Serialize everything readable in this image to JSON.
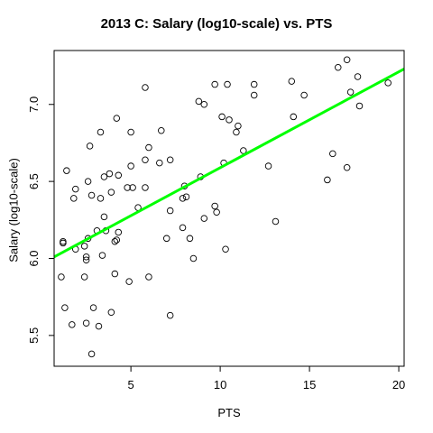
{
  "chart_data": {
    "type": "scatter",
    "title": "2013 C: Salary (log10-scale) vs. PTS",
    "xlabel": "PTS",
    "ylabel": "Salary (log10-scale)",
    "xlim": [
      0.7,
      20.3
    ],
    "ylim": [
      5.3,
      7.35
    ],
    "xticks": [
      "5",
      "10",
      "15",
      "20"
    ],
    "yticks": [
      "5.5",
      "6.0",
      "6.5",
      "7.0"
    ],
    "grid": false,
    "points_style": "open circles",
    "fit_line": {
      "color": "#00ff00",
      "x": [
        0.7,
        20.3
      ],
      "y": [
        6.01,
        7.23
      ]
    },
    "points": [
      [
        1.2,
        6.11
      ],
      [
        1.2,
        6.1
      ],
      [
        1.4,
        6.57
      ],
      [
        1.1,
        5.88
      ],
      [
        1.3,
        5.68
      ],
      [
        1.7,
        5.57
      ],
      [
        1.8,
        6.39
      ],
      [
        1.9,
        6.45
      ],
      [
        1.9,
        6.06
      ],
      [
        2.4,
        5.88
      ],
      [
        2.4,
        6.08
      ],
      [
        2.5,
        6.01
      ],
      [
        2.5,
        5.99
      ],
      [
        2.5,
        5.58
      ],
      [
        2.6,
        6.13
      ],
      [
        2.6,
        6.5
      ],
      [
        2.7,
        6.73
      ],
      [
        2.8,
        6.41
      ],
      [
        2.8,
        5.38
      ],
      [
        2.9,
        5.68
      ],
      [
        3.1,
        6.18
      ],
      [
        3.2,
        5.56
      ],
      [
        3.3,
        6.39
      ],
      [
        3.3,
        6.82
      ],
      [
        3.4,
        6.02
      ],
      [
        3.5,
        6.27
      ],
      [
        3.5,
        6.53
      ],
      [
        3.6,
        6.18
      ],
      [
        3.8,
        6.55
      ],
      [
        3.9,
        6.43
      ],
      [
        3.9,
        5.65
      ],
      [
        4.1,
        6.11
      ],
      [
        4.1,
        5.9
      ],
      [
        4.2,
        6.12
      ],
      [
        4.2,
        6.91
      ],
      [
        4.3,
        6.54
      ],
      [
        4.3,
        6.17
      ],
      [
        4.8,
        6.46
      ],
      [
        4.9,
        5.85
      ],
      [
        5.0,
        6.6
      ],
      [
        5.0,
        6.82
      ],
      [
        5.1,
        6.46
      ],
      [
        5.4,
        6.33
      ],
      [
        5.8,
        6.46
      ],
      [
        5.8,
        6.64
      ],
      [
        5.8,
        7.11
      ],
      [
        6.0,
        6.72
      ],
      [
        6.0,
        5.88
      ],
      [
        6.6,
        6.62
      ],
      [
        6.7,
        6.83
      ],
      [
        7.0,
        6.13
      ],
      [
        7.2,
        6.64
      ],
      [
        7.2,
        6.31
      ],
      [
        7.2,
        5.63
      ],
      [
        7.9,
        6.2
      ],
      [
        7.9,
        6.39
      ],
      [
        8.0,
        6.47
      ],
      [
        8.1,
        6.4
      ],
      [
        8.3,
        6.13
      ],
      [
        8.5,
        6.0
      ],
      [
        8.8,
        7.02
      ],
      [
        8.9,
        6.53
      ],
      [
        9.1,
        6.26
      ],
      [
        9.1,
        7.0
      ],
      [
        9.7,
        7.13
      ],
      [
        9.7,
        6.34
      ],
      [
        9.8,
        6.3
      ],
      [
        10.1,
        6.92
      ],
      [
        10.2,
        6.62
      ],
      [
        10.3,
        6.06
      ],
      [
        10.4,
        7.13
      ],
      [
        10.5,
        6.9
      ],
      [
        10.9,
        6.82
      ],
      [
        11.0,
        6.86
      ],
      [
        11.3,
        6.7
      ],
      [
        11.9,
        7.06
      ],
      [
        11.9,
        7.13
      ],
      [
        12.7,
        6.6
      ],
      [
        13.1,
        6.24
      ],
      [
        14.0,
        7.15
      ],
      [
        14.1,
        6.92
      ],
      [
        14.7,
        7.06
      ],
      [
        16.0,
        6.51
      ],
      [
        16.3,
        6.68
      ],
      [
        16.6,
        7.24
      ],
      [
        17.1,
        7.29
      ],
      [
        17.1,
        6.59
      ],
      [
        17.3,
        7.08
      ],
      [
        17.7,
        7.18
      ],
      [
        17.8,
        6.99
      ],
      [
        19.4,
        7.14
      ]
    ]
  }
}
